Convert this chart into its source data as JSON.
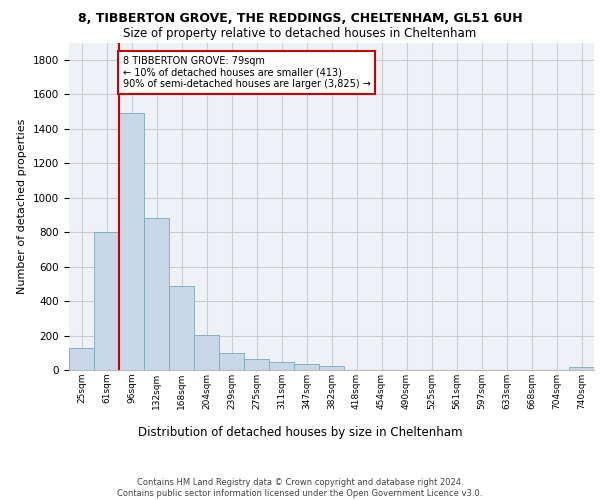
{
  "title_line1": "8, TIBBERTON GROVE, THE REDDINGS, CHELTENHAM, GL51 6UH",
  "title_line2": "Size of property relative to detached houses in Cheltenham",
  "xlabel": "Distribution of detached houses by size in Cheltenham",
  "ylabel": "Number of detached properties",
  "categories": [
    "25sqm",
    "61sqm",
    "96sqm",
    "132sqm",
    "168sqm",
    "204sqm",
    "239sqm",
    "275sqm",
    "311sqm",
    "347sqm",
    "382sqm",
    "418sqm",
    "454sqm",
    "490sqm",
    "525sqm",
    "561sqm",
    "597sqm",
    "633sqm",
    "668sqm",
    "704sqm",
    "740sqm"
  ],
  "values": [
    125,
    800,
    1490,
    880,
    490,
    205,
    100,
    65,
    45,
    35,
    25,
    0,
    0,
    0,
    0,
    0,
    0,
    0,
    0,
    0,
    20
  ],
  "bar_color": "#c8d8e8",
  "bar_edge_color": "#7aaabb",
  "vline_color": "#cc0000",
  "annotation_text": "8 TIBBERTON GROVE: 79sqm\n← 10% of detached houses are smaller (413)\n90% of semi-detached houses are larger (3,825) →",
  "annotation_box_color": "#ffffff",
  "annotation_box_edge": "#cc0000",
  "ylim": [
    0,
    1900
  ],
  "yticks": [
    0,
    200,
    400,
    600,
    800,
    1000,
    1200,
    1400,
    1600,
    1800
  ],
  "footer": "Contains HM Land Registry data © Crown copyright and database right 2024.\nContains public sector information licensed under the Open Government Licence v3.0.",
  "grid_color": "#cccccc",
  "background_color": "#eef2f7"
}
